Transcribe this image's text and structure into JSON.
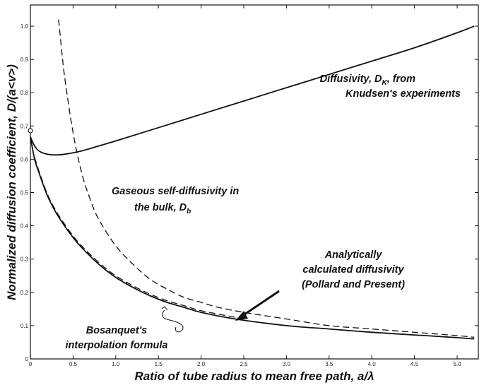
{
  "chart_data": {
    "type": "line",
    "xlabel": "Ratio of tube radius to mean free path, a/λ",
    "ylabel": "Normalized diffusion coefficient, D/(a<v>)",
    "xlim": [
      0,
      5.2
    ],
    "ylim": [
      0,
      1.02
    ],
    "x_ticks": [
      "0",
      "0.5",
      "1.0",
      "1.5",
      "2.0",
      "2.5",
      "3.0",
      "3.5",
      "4.0",
      "4.5",
      "5.0"
    ],
    "y_ticks": [
      "0",
      "0.1",
      "0.2",
      "0.3",
      "0.4",
      "0.5",
      "0.6",
      "0.7",
      "0.8",
      "0.9",
      "1.0"
    ],
    "grid": false,
    "series": [
      {
        "style": "solid",
        "x": [
          0,
          0.05,
          0.1,
          0.2,
          0.3,
          0.4,
          0.6,
          0.8,
          1.0,
          1.5,
          2.0,
          2.5,
          3.0,
          3.5,
          4.0,
          4.5,
          5.0,
          5.2
        ],
        "y": [
          0.667,
          0.64,
          0.625,
          0.615,
          0.613,
          0.615,
          0.625,
          0.64,
          0.655,
          0.695,
          0.735,
          0.775,
          0.815,
          0.855,
          0.895,
          0.935,
          0.98,
          1.0
        ]
      },
      {
        "style": "dashed",
        "x": [
          0.33,
          0.35,
          0.4,
          0.5,
          0.6,
          0.7,
          0.8,
          1.0,
          1.2,
          1.4,
          1.6,
          1.8,
          2.0,
          2.2,
          2.5,
          3.0,
          3.5,
          4.0,
          4.5,
          5.0,
          5.2
        ],
        "y": [
          1.02,
          0.97,
          0.85,
          0.68,
          0.56,
          0.48,
          0.42,
          0.34,
          0.285,
          0.24,
          0.21,
          0.185,
          0.17,
          0.155,
          0.14,
          0.12,
          0.1,
          0.09,
          0.08,
          0.07,
          0.065
        ]
      },
      {
        "style": "solid",
        "x": [
          0,
          0.05,
          0.1,
          0.2,
          0.3,
          0.4,
          0.5,
          0.6,
          0.8,
          1.0,
          1.2,
          1.4,
          1.6,
          1.8,
          2.0,
          2.4,
          3.0,
          3.5,
          4.0,
          4.5,
          5.0,
          5.2
        ],
        "y": [
          0.667,
          0.6,
          0.56,
          0.49,
          0.44,
          0.4,
          0.365,
          0.335,
          0.285,
          0.245,
          0.215,
          0.19,
          0.17,
          0.155,
          0.14,
          0.12,
          0.1,
          0.09,
          0.08,
          0.072,
          0.064,
          0.06
        ]
      },
      {
        "style": "dashed",
        "x": [
          0.05,
          0.1,
          0.2,
          0.3,
          0.4,
          0.5,
          0.6,
          0.8,
          1.0,
          1.2,
          1.4,
          1.6,
          1.8,
          2.0,
          2.4
        ],
        "y": [
          0.605,
          0.565,
          0.495,
          0.445,
          0.405,
          0.37,
          0.34,
          0.29,
          0.25,
          0.22,
          0.195,
          0.175,
          0.16,
          0.145,
          0.125
        ]
      }
    ],
    "annotations": [
      {
        "text": "Diffusivity, D",
        "subscript": "K",
        "text_after": ", from",
        "line2": "Knudsen's experiments"
      },
      {
        "text": "Gaseous self-diffusivity in",
        "line2": "the bulk, D",
        "subscript": "b"
      },
      {
        "text": "Analytically",
        "line2": "calculated diffusivity",
        "line3": "(Pollard and Present)"
      },
      {
        "text": "Bosanquet's",
        "line2": "interpolation formula"
      }
    ]
  }
}
